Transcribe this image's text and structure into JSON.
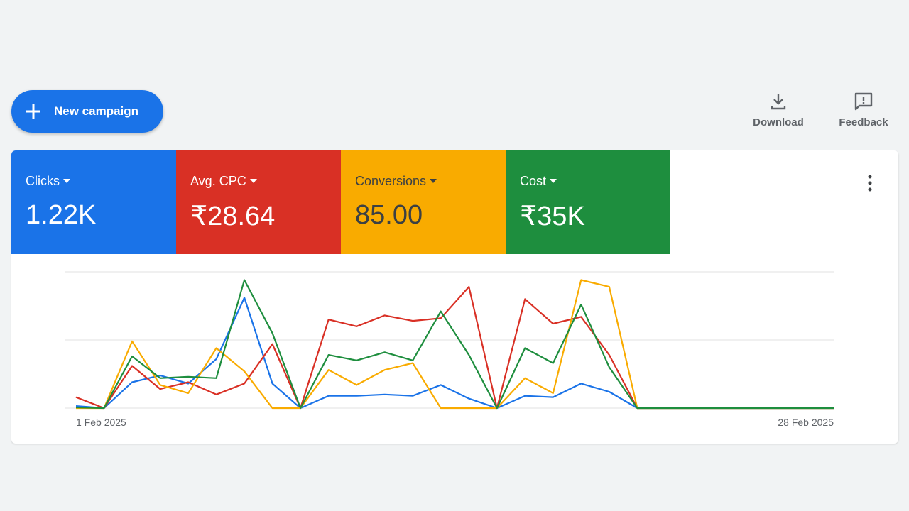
{
  "header": {
    "new_campaign_button": "New campaign",
    "actions": [
      "Download",
      "Feedback"
    ]
  },
  "metric_totals": [
    "1.22K",
    "₹28.64",
    "85.00",
    "₹35K"
  ],
  "chart_data": {
    "type": "line",
    "categories": [
      "1 Feb 2025",
      null,
      null,
      null,
      null,
      null,
      null,
      null,
      null,
      null,
      null,
      null,
      null,
      null,
      null,
      null,
      null,
      null,
      null,
      null,
      null,
      null,
      null,
      null,
      null,
      null,
      null,
      "28 Feb 2025"
    ],
    "ylim": [
      0,
      100
    ],
    "yticks": [
      0,
      50,
      100
    ],
    "grid": true,
    "series": [
      {
        "name": "Clicks",
        "color": "#1a73e8",
        "values": [
          1.5,
          0,
          19,
          24,
          18,
          36,
          81,
          18,
          0,
          9,
          9,
          10,
          9,
          17,
          7,
          0,
          9,
          8,
          18,
          12,
          0,
          0,
          0,
          0,
          0,
          0,
          0,
          0
        ]
      },
      {
        "name": "Avg. CPC",
        "color": "#d93025",
        "values": [
          8,
          0,
          31,
          14,
          19,
          10,
          18,
          47,
          0,
          65,
          60,
          68,
          64,
          66,
          89,
          0,
          80,
          62,
          67,
          39,
          0,
          0,
          0,
          0,
          0,
          0,
          0,
          0
        ]
      },
      {
        "name": "Conversions",
        "color": "#f9ab00",
        "values": [
          0,
          0,
          49,
          17,
          11,
          44,
          27,
          0,
          0,
          28,
          17,
          28,
          33,
          0,
          0,
          0,
          22,
          11,
          94,
          89,
          0,
          0,
          0,
          0,
          0,
          0,
          0,
          0
        ]
      },
      {
        "name": "Cost",
        "color": "#1e8e3e",
        "values": [
          0.5,
          0,
          38,
          22,
          23,
          22,
          94,
          55,
          0,
          39,
          35,
          41,
          35,
          71,
          39,
          0,
          44,
          33,
          76,
          30,
          0,
          0,
          0,
          0,
          0,
          0,
          0,
          0
        ]
      }
    ]
  }
}
